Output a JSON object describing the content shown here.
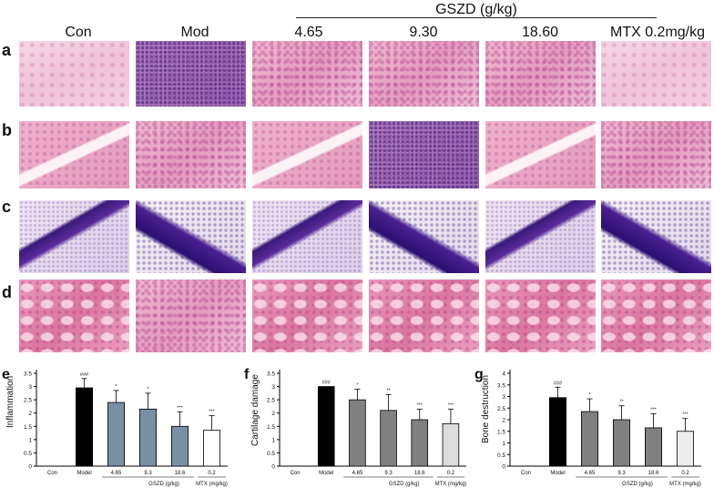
{
  "figure": {
    "columns": [
      "Con",
      "Mod",
      "4.65",
      "9.30",
      "18.60",
      "MTX 0.2mg/kg"
    ],
    "group_header": "GSZD (g/kg)",
    "rows": [
      "a",
      "b",
      "c",
      "d"
    ]
  },
  "charts_text": {
    "panel_letters": [
      "e",
      "f",
      "g"
    ],
    "group_label": "GSZD (g/kg)",
    "mtx_label": "MTX (mg/kg)"
  },
  "chart_data": [
    {
      "type": "bar",
      "panel": "e",
      "title": "",
      "xlabel": "",
      "ylabel": "Inflammation",
      "ylim": [
        0,
        3.5
      ],
      "yticks": [
        "0",
        "0.5",
        "1",
        "1.5",
        "2",
        "2.5",
        "3",
        "3.5"
      ],
      "categories": [
        "Con",
        "Model",
        "4.65",
        "9.3",
        "18.6",
        "0.2"
      ],
      "values": [
        0,
        2.95,
        2.4,
        2.15,
        1.5,
        1.35
      ],
      "errors": [
        0,
        0.35,
        0.45,
        0.6,
        0.55,
        0.55
      ],
      "annotations": [
        "",
        "###",
        "*",
        "*",
        "***",
        "***"
      ],
      "colors": [
        "#000000",
        "#000000",
        "#7a8fa3",
        "#7a8fa3",
        "#7a8fa3",
        "#ffffff"
      ]
    },
    {
      "type": "bar",
      "panel": "f",
      "title": "",
      "xlabel": "",
      "ylabel": "Cartilage damage",
      "ylim": [
        0,
        3.5
      ],
      "yticks": [
        "0",
        "0.5",
        "1",
        "1.5",
        "2",
        "2.5",
        "3",
        "3.5"
      ],
      "categories": [
        "Con",
        "Model",
        "4.65",
        "9.3",
        "18.6",
        "0.2"
      ],
      "values": [
        0,
        3.0,
        2.5,
        2.1,
        1.75,
        1.6
      ],
      "errors": [
        0,
        0,
        0.4,
        0.6,
        0.4,
        0.55
      ],
      "annotations": [
        "",
        "###",
        "*",
        "**",
        "***",
        "***"
      ],
      "colors": [
        "#000000",
        "#000000",
        "#808080",
        "#808080",
        "#808080",
        "#dcdcdc"
      ]
    },
    {
      "type": "bar",
      "panel": "g",
      "title": "",
      "xlabel": "",
      "ylabel": "Bone destruction",
      "ylim": [
        0,
        4
      ],
      "yticks": [
        "0",
        "0.5",
        "1",
        "1.5",
        "2",
        "2.5",
        "3",
        "3.5",
        "4"
      ],
      "categories": [
        "Con",
        "Model",
        "4.65",
        "9.3",
        "18.6",
        "0.2"
      ],
      "values": [
        0,
        2.95,
        2.35,
        2.0,
        1.65,
        1.5
      ],
      "errors": [
        0,
        0.45,
        0.55,
        0.6,
        0.6,
        0.55
      ],
      "annotations": [
        "",
        "###",
        "*",
        "**",
        "***",
        "***"
      ],
      "colors": [
        "#000000",
        "#000000",
        "#808080",
        "#808080",
        "#808080",
        "#ededed"
      ]
    }
  ]
}
